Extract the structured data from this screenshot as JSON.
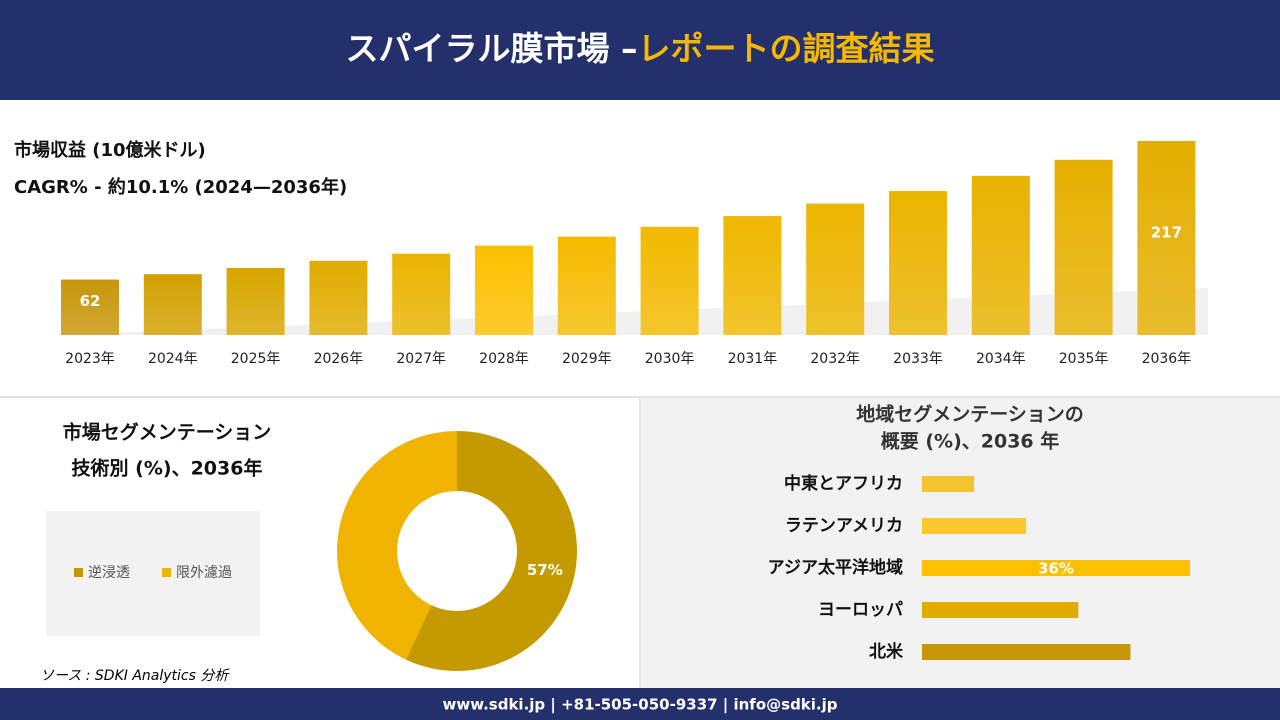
{
  "header": {
    "title_main": "スパイラル膜市場 –",
    "title_highlight": "レポートの調査結果"
  },
  "chart_data": [
    {
      "type": "bar",
      "title": "市場収益 (10億米ドル)",
      "subtitle": "CAGR% - 約10.1% (2024—2036年)",
      "categories": [
        "2023年",
        "2024年",
        "2025年",
        "2026年",
        "2027年",
        "2028年",
        "2029年",
        "2030年",
        "2031年",
        "2032年",
        "2033年",
        "2034年",
        "2035年",
        "2036年"
      ],
      "values": [
        62,
        68,
        75,
        83,
        91,
        100,
        110,
        121,
        133,
        147,
        161,
        178,
        196,
        217
      ],
      "colors": [
        "#c8960a",
        "#d2a000",
        "#d8a600",
        "#e0ac00",
        "#eab400",
        "#fcc000",
        "#f5bb00",
        "#f2b900",
        "#efb700",
        "#ecb500",
        "#eab400",
        "#e8b200",
        "#e6b000",
        "#e4ae00"
      ]
    },
    {
      "type": "donut",
      "title": [
        "市場セグメンテーション",
        "技術別 (%)、2036年"
      ],
      "categories": [
        "逆浸透",
        "限外濾過"
      ],
      "values": [
        57,
        43
      ],
      "value_labels": [
        "57%",
        null
      ],
      "colors": [
        "#c49a00",
        "#f0b400"
      ]
    },
    {
      "type": "hbar",
      "title": [
        "地域セグメンテーションの",
        "概要 (%)、2036 年"
      ],
      "categories": [
        "中東とアフリカ",
        "ラテンアメリカ",
        "アジア太平洋地域",
        "ヨーロッパ",
        "北米"
      ],
      "values": [
        7,
        14,
        36,
        21,
        28
      ],
      "value_labels": [
        null,
        null,
        "36%",
        null,
        null
      ],
      "colors": [
        "#f4c430",
        "#fdc82f",
        "#fcc000",
        "#e0ac00",
        "#c8960a"
      ]
    }
  ],
  "source": "ソース : SDKI Analytics 分析",
  "footer": "www.sdki.jp | +81-505-050-9337 | info@sdki.jp"
}
